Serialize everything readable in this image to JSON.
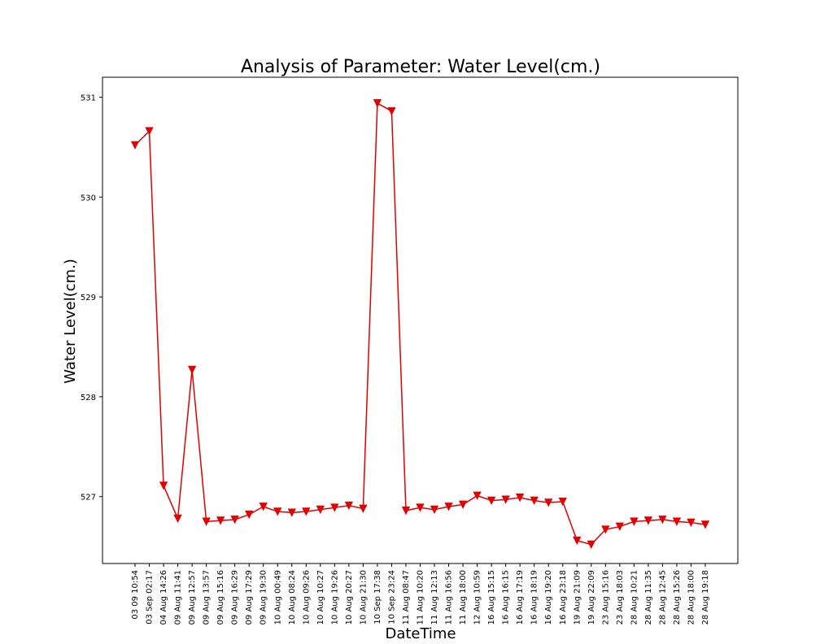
{
  "chart_data": {
    "type": "line",
    "title": "Analysis of Parameter: Water Level(cm.)",
    "xlabel": "DateTime",
    "ylabel": "Water Level(cm.)",
    "ylim": [
      526.33,
      531.2
    ],
    "yticks": [
      527,
      528,
      529,
      530,
      531
    ],
    "x": [
      "03 09 10:54",
      "03 Sep 02:17",
      "04 Aug 14:26",
      "09 Aug 11:41",
      "09 Aug 12:57",
      "09 Aug 13:57",
      "09 Aug 15:16",
      "09 Aug 16:29",
      "09 Aug 17:29",
      "09 Aug 19:30",
      "10 Aug 00:49",
      "10 Aug 08:24",
      "10 Aug 09:26",
      "10 Aug 10:27",
      "10 Aug 19:26",
      "10 Aug 20:27",
      "10 Aug 21:30",
      "10 Sep 17:38",
      "10 Sep 23:24",
      "11 Aug 08:47",
      "11 Aug 10:20",
      "11 Aug 12:13",
      "11 Aug 16:56",
      "11 Aug 18:00",
      "12 Aug 10:59",
      "16 Aug 15:15",
      "16 Aug 16:15",
      "16 Aug 17:19",
      "16 Aug 18:19",
      "16 Aug 19:20",
      "16 Aug 23:18",
      "19 Aug 21:09",
      "19 Aug 22:09",
      "23 Aug 15:16",
      "23 Aug 18:03",
      "28 Aug 10:21",
      "28 Aug 11:35",
      "28 Aug 12:45",
      "28 Aug 15:26",
      "28 Aug 18:00",
      "28 Aug 19:18"
    ],
    "series": [
      {
        "values": [
          530.52,
          530.66,
          527.11,
          526.78,
          528.27,
          526.75,
          526.76,
          526.77,
          526.82,
          526.9,
          526.85,
          526.84,
          526.85,
          526.87,
          526.89,
          526.91,
          526.88,
          530.94,
          530.86,
          526.86,
          526.89,
          526.87,
          526.9,
          526.92,
          527.01,
          526.96,
          526.97,
          526.99,
          526.96,
          526.94,
          526.95,
          526.56,
          526.52,
          526.67,
          526.7,
          526.75,
          526.76,
          526.77,
          526.75,
          526.74,
          526.72
        ]
      }
    ],
    "colors": {
      "line": "#e00000",
      "marker": "#e00000"
    },
    "marker": "triangle-down",
    "grid": false
  }
}
